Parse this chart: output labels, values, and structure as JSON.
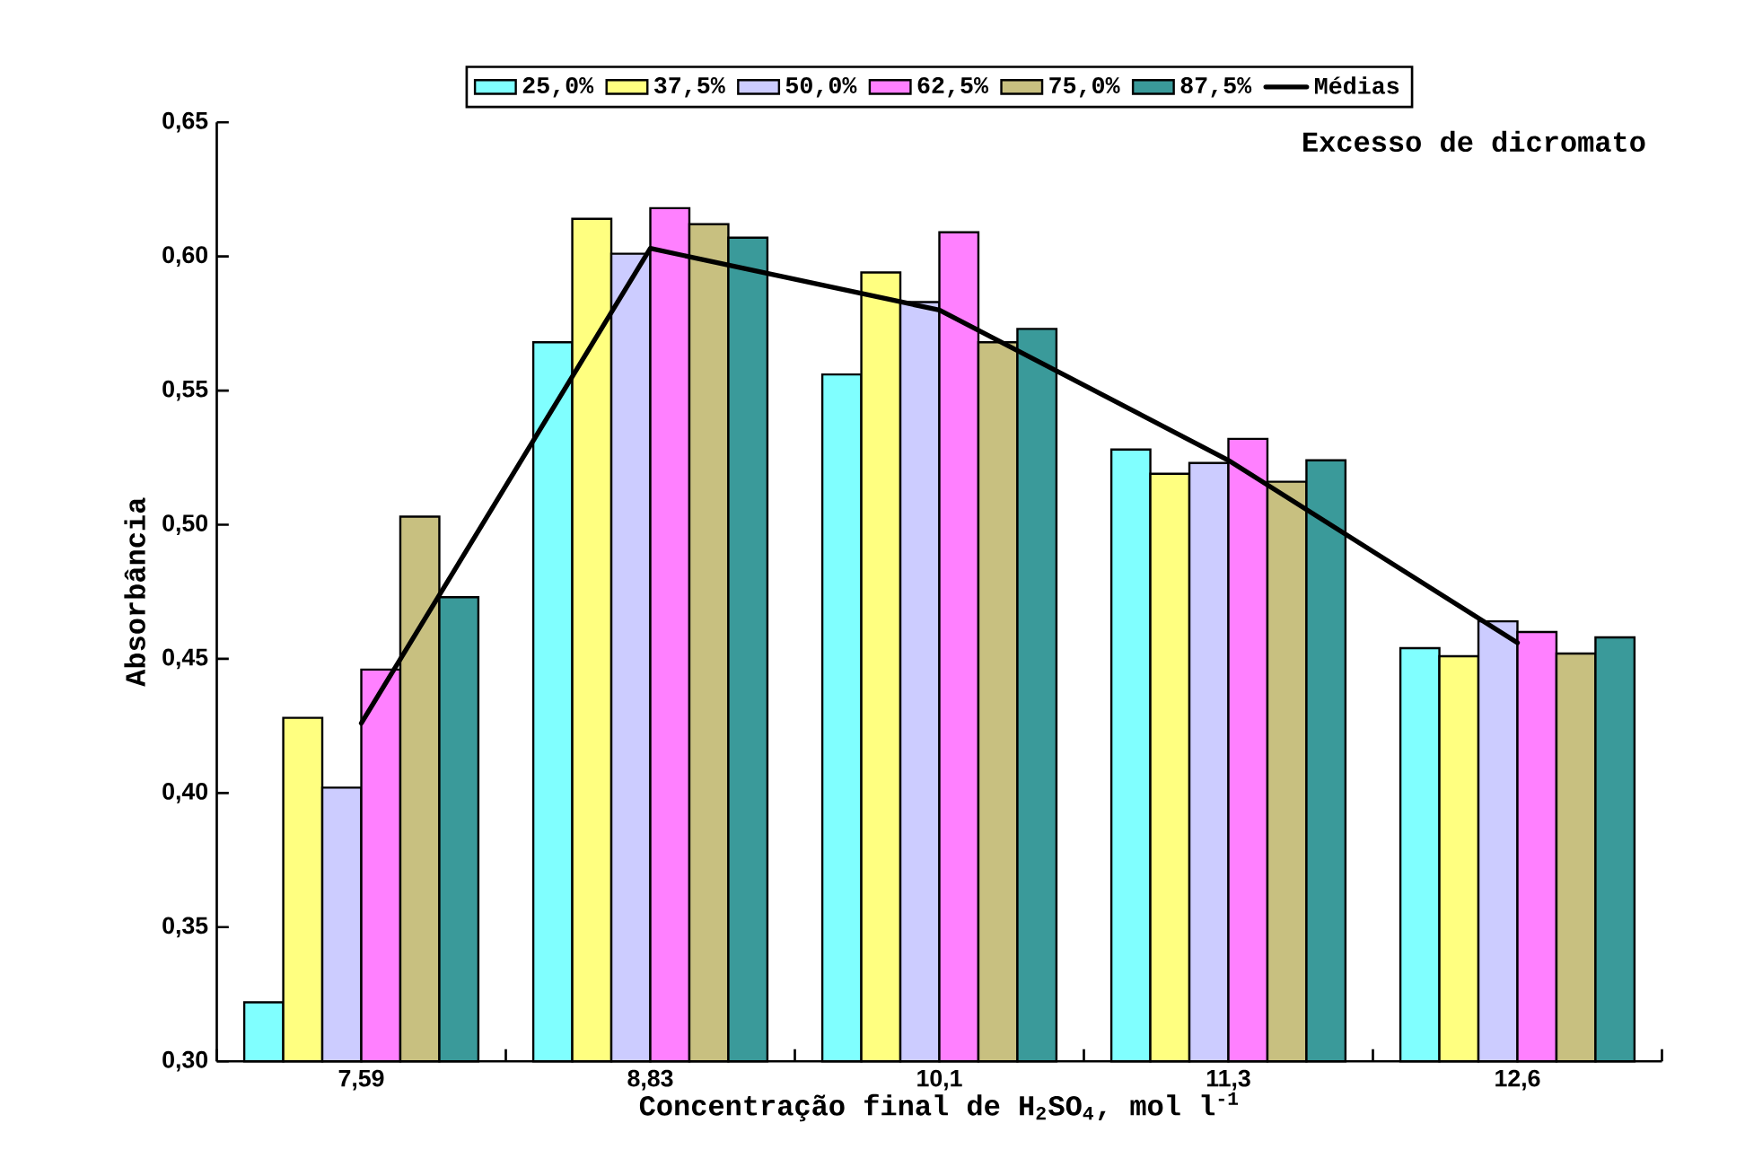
{
  "chart_data": {
    "type": "bar",
    "xlabel": "Concentração final de H$_{2}$SO$_{4}$, mol l$^{-1}$",
    "ylabel": "Absorbância",
    "annotations": [
      "Excesso de dicromato"
    ],
    "categories": [
      "7,59",
      "8,83",
      "10,1",
      "11,3",
      "12,6"
    ],
    "series": [
      {
        "name": "25,0%",
        "color": "#80ffff",
        "values": [
          0.322,
          0.568,
          0.556,
          0.528,
          0.454
        ]
      },
      {
        "name": "37,5%",
        "color": "#ffff80",
        "values": [
          0.428,
          0.614,
          0.594,
          0.519,
          0.451
        ]
      },
      {
        "name": "50,0%",
        "color": "#ccccff",
        "values": [
          0.402,
          0.601,
          0.583,
          0.523,
          0.464
        ]
      },
      {
        "name": "62,5%",
        "color": "#ff80ff",
        "values": [
          0.446,
          0.618,
          0.609,
          0.532,
          0.46
        ]
      },
      {
        "name": "75,0%",
        "color": "#c8c080",
        "values": [
          0.503,
          0.612,
          0.568,
          0.516,
          0.452
        ]
      },
      {
        "name": "87,5%",
        "color": "#3a9a9a",
        "values": [
          0.473,
          0.607,
          0.573,
          0.524,
          0.458
        ]
      },
      {
        "name": "Médias",
        "type": "line",
        "color": "#000000",
        "marker": "none",
        "values": [
          0.426,
          0.603,
          0.58,
          0.524,
          0.456
        ]
      }
    ],
    "ylim": [
      0.3,
      0.65
    ],
    "yticks": [
      {
        "value": 0.3,
        "label": "0,30"
      },
      {
        "value": 0.35,
        "label": "0,35"
      },
      {
        "value": 0.4,
        "label": "0,40"
      },
      {
        "value": 0.45,
        "label": "0,45"
      },
      {
        "value": 0.5,
        "label": "0,50"
      },
      {
        "value": 0.55,
        "label": "0,55"
      },
      {
        "value": 0.6,
        "label": "0,60"
      },
      {
        "value": 0.65,
        "label": "0,65"
      }
    ],
    "grid": false,
    "legend": "top"
  }
}
